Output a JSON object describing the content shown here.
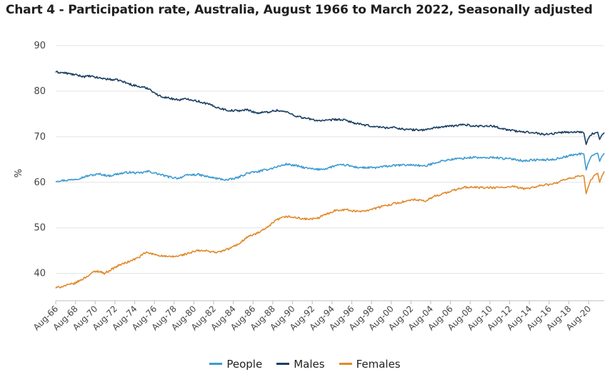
{
  "chart_data": {
    "type": "line",
    "title": "Chart 4 - Participation rate, Australia, August 1966 to March 2022, Seasonally adjusted",
    "xlabel": "",
    "ylabel": "%",
    "ylim": [
      34,
      90
    ],
    "yticks": [
      40,
      50,
      60,
      70,
      80,
      90
    ],
    "xlim": [
      1966.58,
      2022.17
    ],
    "xticks": [
      "Aug-66",
      "Aug-68",
      "Aug-70",
      "Aug-72",
      "Aug-74",
      "Aug-76",
      "Aug-78",
      "Aug-80",
      "Aug-82",
      "Aug-84",
      "Aug-86",
      "Aug-88",
      "Aug-90",
      "Aug-92",
      "Aug-94",
      "Aug-96",
      "Aug-98",
      "Aug-00",
      "Aug-02",
      "Aug-04",
      "Aug-06",
      "Aug-08",
      "Aug-10",
      "Aug-12",
      "Aug-14",
      "Aug-16",
      "Aug-18",
      "Aug-20"
    ],
    "grid": true,
    "legend_position": "bottom",
    "series": [
      {
        "name": "People",
        "color": "#3d9bd1",
        "points": [
          [
            1966.58,
            60.3
          ],
          [
            1968.0,
            60.5
          ],
          [
            1969.0,
            60.9
          ],
          [
            1970.0,
            61.5
          ],
          [
            1971.0,
            61.8
          ],
          [
            1972.0,
            61.4
          ],
          [
            1973.0,
            61.9
          ],
          [
            1974.0,
            62.2
          ],
          [
            1975.0,
            62.0
          ],
          [
            1976.0,
            62.4
          ],
          [
            1977.0,
            61.8
          ],
          [
            1978.0,
            61.2
          ],
          [
            1979.0,
            60.9
          ],
          [
            1980.0,
            61.6
          ],
          [
            1981.0,
            61.7
          ],
          [
            1982.0,
            61.2
          ],
          [
            1983.0,
            60.8
          ],
          [
            1984.0,
            60.5
          ],
          [
            1985.0,
            61.0
          ],
          [
            1986.0,
            62.0
          ],
          [
            1987.0,
            62.3
          ],
          [
            1988.0,
            62.8
          ],
          [
            1989.0,
            63.4
          ],
          [
            1990.0,
            64.0
          ],
          [
            1991.0,
            63.6
          ],
          [
            1992.0,
            63.1
          ],
          [
            1993.0,
            62.8
          ],
          [
            1994.0,
            63.0
          ],
          [
            1995.0,
            63.7
          ],
          [
            1996.0,
            63.8
          ],
          [
            1997.0,
            63.3
          ],
          [
            1998.0,
            63.2
          ],
          [
            1999.0,
            63.2
          ],
          [
            2000.0,
            63.5
          ],
          [
            2001.0,
            63.7
          ],
          [
            2002.0,
            63.8
          ],
          [
            2003.0,
            63.8
          ],
          [
            2004.0,
            63.5
          ],
          [
            2005.0,
            64.3
          ],
          [
            2006.0,
            64.8
          ],
          [
            2007.0,
            65.1
          ],
          [
            2008.0,
            65.3
          ],
          [
            2009.0,
            65.5
          ],
          [
            2010.0,
            65.3
          ],
          [
            2011.0,
            65.5
          ],
          [
            2012.0,
            65.2
          ],
          [
            2013.0,
            65.1
          ],
          [
            2014.0,
            64.7
          ],
          [
            2015.0,
            64.9
          ],
          [
            2016.0,
            64.9
          ],
          [
            2017.0,
            65.0
          ],
          [
            2018.0,
            65.5
          ],
          [
            2019.0,
            66.0
          ],
          [
            2019.9,
            66.3
          ],
          [
            2020.1,
            66.2
          ],
          [
            2020.33,
            62.7
          ],
          [
            2020.5,
            64.0
          ],
          [
            2020.8,
            65.5
          ],
          [
            2021.2,
            66.2
          ],
          [
            2021.5,
            66.4
          ],
          [
            2021.7,
            64.6
          ],
          [
            2021.9,
            65.6
          ],
          [
            2022.17,
            66.4
          ]
        ]
      },
      {
        "name": "Males",
        "color": "#1a3f63",
        "points": [
          [
            1966.58,
            84.2
          ],
          [
            1967.5,
            84.0
          ],
          [
            1968.5,
            83.6
          ],
          [
            1969.5,
            83.2
          ],
          [
            1970.0,
            83.3
          ],
          [
            1971.0,
            82.9
          ],
          [
            1972.0,
            82.6
          ],
          [
            1973.0,
            82.4
          ],
          [
            1974.0,
            81.6
          ],
          [
            1975.0,
            81.0
          ],
          [
            1976.0,
            80.6
          ],
          [
            1977.0,
            79.0
          ],
          [
            1978.0,
            78.5
          ],
          [
            1979.0,
            78.1
          ],
          [
            1980.0,
            78.3
          ],
          [
            1981.0,
            77.8
          ],
          [
            1982.0,
            77.2
          ],
          [
            1983.0,
            76.4
          ],
          [
            1984.0,
            75.8
          ],
          [
            1985.0,
            75.7
          ],
          [
            1986.0,
            75.9
          ],
          [
            1987.0,
            75.2
          ],
          [
            1988.0,
            75.4
          ],
          [
            1989.0,
            75.8
          ],
          [
            1990.0,
            75.4
          ],
          [
            1991.0,
            74.5
          ],
          [
            1992.0,
            74.0
          ],
          [
            1993.0,
            73.6
          ],
          [
            1994.0,
            73.5
          ],
          [
            1995.0,
            73.8
          ],
          [
            1996.0,
            73.6
          ],
          [
            1997.0,
            72.9
          ],
          [
            1998.0,
            72.5
          ],
          [
            1999.0,
            72.2
          ],
          [
            2000.0,
            72.0
          ],
          [
            2001.0,
            72.0
          ],
          [
            2002.0,
            71.6
          ],
          [
            2003.0,
            71.5
          ],
          [
            2004.0,
            71.5
          ],
          [
            2005.0,
            72.0
          ],
          [
            2006.0,
            72.2
          ],
          [
            2007.0,
            72.4
          ],
          [
            2008.0,
            72.7
          ],
          [
            2009.0,
            72.3
          ],
          [
            2010.0,
            72.4
          ],
          [
            2011.0,
            72.3
          ],
          [
            2012.0,
            71.7
          ],
          [
            2013.0,
            71.3
          ],
          [
            2014.0,
            71.0
          ],
          [
            2015.0,
            71.0
          ],
          [
            2016.0,
            70.5
          ],
          [
            2017.0,
            70.7
          ],
          [
            2018.0,
            71.0
          ],
          [
            2019.0,
            71.0
          ],
          [
            2019.9,
            71.1
          ],
          [
            2020.1,
            70.8
          ],
          [
            2020.33,
            68.3
          ],
          [
            2020.5,
            69.4
          ],
          [
            2020.8,
            70.5
          ],
          [
            2021.2,
            70.8
          ],
          [
            2021.5,
            71.0
          ],
          [
            2021.7,
            69.4
          ],
          [
            2021.9,
            70.3
          ],
          [
            2022.17,
            70.9
          ]
        ]
      },
      {
        "name": "Females",
        "color": "#e08a2b",
        "points": [
          [
            1966.58,
            36.8
          ],
          [
            1967.5,
            37.3
          ],
          [
            1968.5,
            37.8
          ],
          [
            1969.5,
            39.0
          ],
          [
            1970.5,
            40.4
          ],
          [
            1971.0,
            40.5
          ],
          [
            1971.5,
            40.0
          ],
          [
            1972.0,
            40.6
          ],
          [
            1973.0,
            41.8
          ],
          [
            1974.0,
            42.6
          ],
          [
            1975.0,
            43.5
          ],
          [
            1975.7,
            44.6
          ],
          [
            1976.5,
            44.2
          ],
          [
            1977.0,
            44.0
          ],
          [
            1978.0,
            43.6
          ],
          [
            1979.0,
            43.8
          ],
          [
            1980.0,
            44.4
          ],
          [
            1981.0,
            45.0
          ],
          [
            1982.0,
            44.9
          ],
          [
            1983.0,
            44.6
          ],
          [
            1984.0,
            45.3
          ],
          [
            1985.0,
            46.3
          ],
          [
            1986.0,
            48.0
          ],
          [
            1987.0,
            48.8
          ],
          [
            1988.0,
            50.0
          ],
          [
            1989.0,
            51.8
          ],
          [
            1990.0,
            52.5
          ],
          [
            1991.0,
            52.2
          ],
          [
            1992.0,
            51.9
          ],
          [
            1993.0,
            52.0
          ],
          [
            1994.0,
            53.0
          ],
          [
            1995.0,
            53.9
          ],
          [
            1996.0,
            54.0
          ],
          [
            1997.0,
            53.6
          ],
          [
            1998.0,
            53.8
          ],
          [
            1999.0,
            54.3
          ],
          [
            2000.0,
            54.9
          ],
          [
            2001.0,
            55.4
          ],
          [
            2002.0,
            55.8
          ],
          [
            2003.0,
            56.2
          ],
          [
            2004.0,
            55.8
          ],
          [
            2005.0,
            57.0
          ],
          [
            2006.0,
            57.6
          ],
          [
            2007.0,
            58.3
          ],
          [
            2008.0,
            58.9
          ],
          [
            2009.0,
            58.9
          ],
          [
            2010.0,
            58.8
          ],
          [
            2011.0,
            58.8
          ],
          [
            2012.0,
            58.9
          ],
          [
            2013.0,
            59.0
          ],
          [
            2014.0,
            58.6
          ],
          [
            2015.0,
            58.9
          ],
          [
            2016.0,
            59.4
          ],
          [
            2017.0,
            59.6
          ],
          [
            2018.0,
            60.4
          ],
          [
            2019.0,
            61.0
          ],
          [
            2019.9,
            61.5
          ],
          [
            2020.1,
            61.4
          ],
          [
            2020.33,
            57.5
          ],
          [
            2020.5,
            58.7
          ],
          [
            2020.8,
            60.5
          ],
          [
            2021.2,
            61.6
          ],
          [
            2021.5,
            62.0
          ],
          [
            2021.7,
            60.0
          ],
          [
            2021.9,
            61.2
          ],
          [
            2022.17,
            62.4
          ]
        ]
      }
    ]
  }
}
